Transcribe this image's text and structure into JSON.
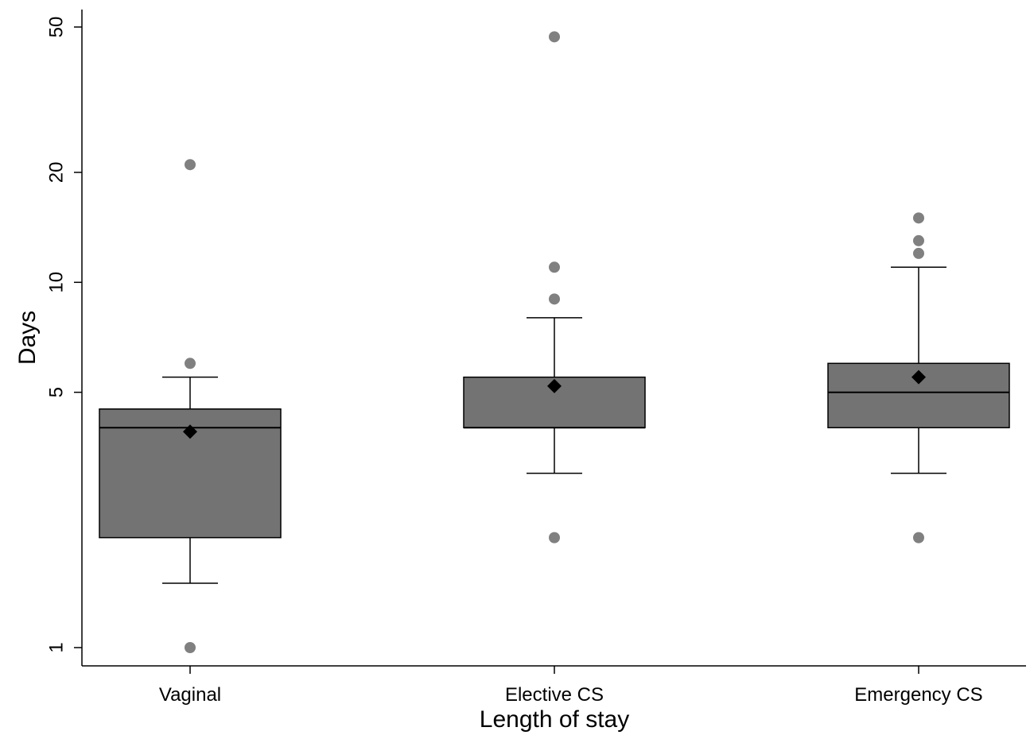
{
  "chart_data": {
    "type": "box",
    "xlabel": "Length of stay",
    "ylabel": "Days",
    "y_scale": "log",
    "ylim": [
      0.95,
      56
    ],
    "yticks": [
      1,
      5,
      10,
      20,
      50
    ],
    "categories": [
      "Vaginal",
      "Elective CS",
      "Emergency CS"
    ],
    "boxes": [
      {
        "category": "Vaginal",
        "whisker_low": 1.5,
        "q1": 2,
        "median": 4,
        "q3": 4.5,
        "whisker_high": 5.5,
        "mean": 3.9,
        "outliers": [
          1,
          6,
          21
        ]
      },
      {
        "category": "Elective CS",
        "whisker_low": 3,
        "q1": 4,
        "median": 4,
        "q3": 5.5,
        "whisker_high": 8,
        "mean": 5.2,
        "outliers": [
          2,
          9,
          11,
          47
        ]
      },
      {
        "category": "Emergency CS",
        "whisker_low": 3,
        "q1": 4,
        "median": 5,
        "q3": 6,
        "whisker_high": 11,
        "mean": 5.5,
        "outliers": [
          2,
          12,
          13,
          15
        ]
      }
    ],
    "grid": false,
    "legend": "none",
    "colors": {
      "box_fill": "#737373",
      "outlier": "#808080",
      "mean_marker": "#000000",
      "lines": "#000000"
    }
  }
}
